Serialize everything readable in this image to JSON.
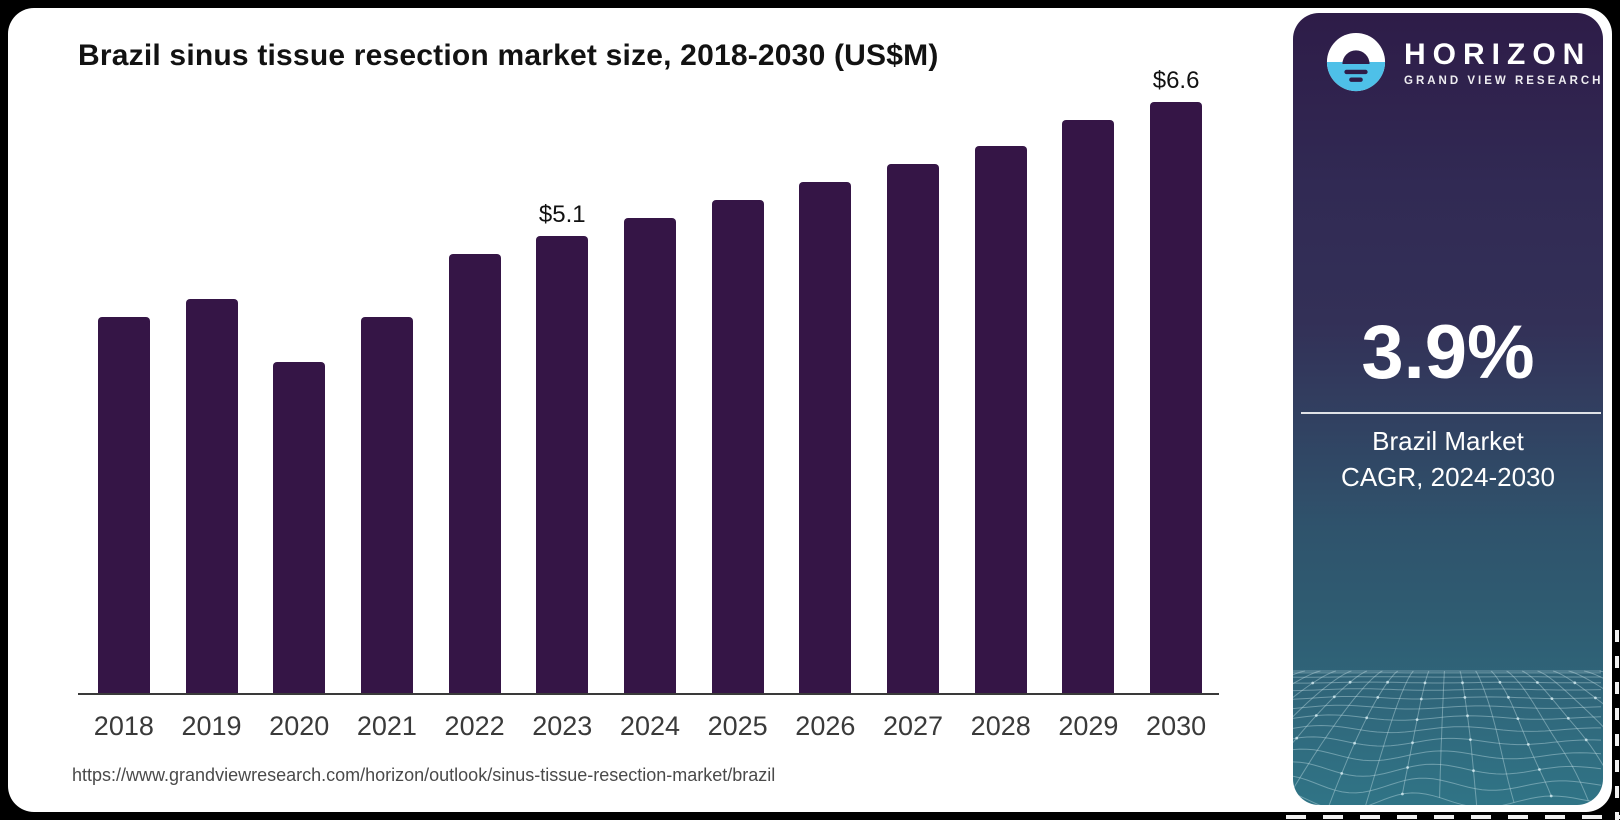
{
  "chart_data": {
    "type": "bar",
    "title": "Brazil sinus tissue resection market size, 2018-2030 (US$M)",
    "categories": [
      "2018",
      "2019",
      "2020",
      "2021",
      "2022",
      "2023",
      "2024",
      "2025",
      "2026",
      "2027",
      "2028",
      "2029",
      "2030"
    ],
    "values": [
      4.2,
      4.4,
      3.7,
      4.2,
      4.9,
      5.1,
      5.3,
      5.5,
      5.7,
      5.9,
      6.1,
      6.4,
      6.6
    ],
    "data_labels": {
      "2023": "$5.1",
      "2030": "$6.6"
    },
    "unit": "US$M",
    "xlabel": "",
    "ylabel": "",
    "ylim": [
      0,
      7
    ],
    "grid": false,
    "legend": "none",
    "bar_color": "#351546",
    "axis_color": "#3a3a3a"
  },
  "footer": {
    "source_url": "https://www.grandviewresearch.com/horizon/outlook/sinus-tissue-resection-market/brazil"
  },
  "sidebar": {
    "logo": {
      "brand": "HORIZON",
      "subbrand": "GRAND VIEW RESEARCH",
      "icon": "horizon-sun-logo-icon",
      "icon_blue": "#4ec0e8",
      "icon_dark": "#2e1c48"
    },
    "stat": {
      "value": "3.9%",
      "label_line1": "Brazil Market",
      "label_line2": "CAGR, 2024-2030"
    },
    "colors": {
      "gradient_top": "#2e1c48",
      "gradient_bottom": "#307486"
    }
  }
}
